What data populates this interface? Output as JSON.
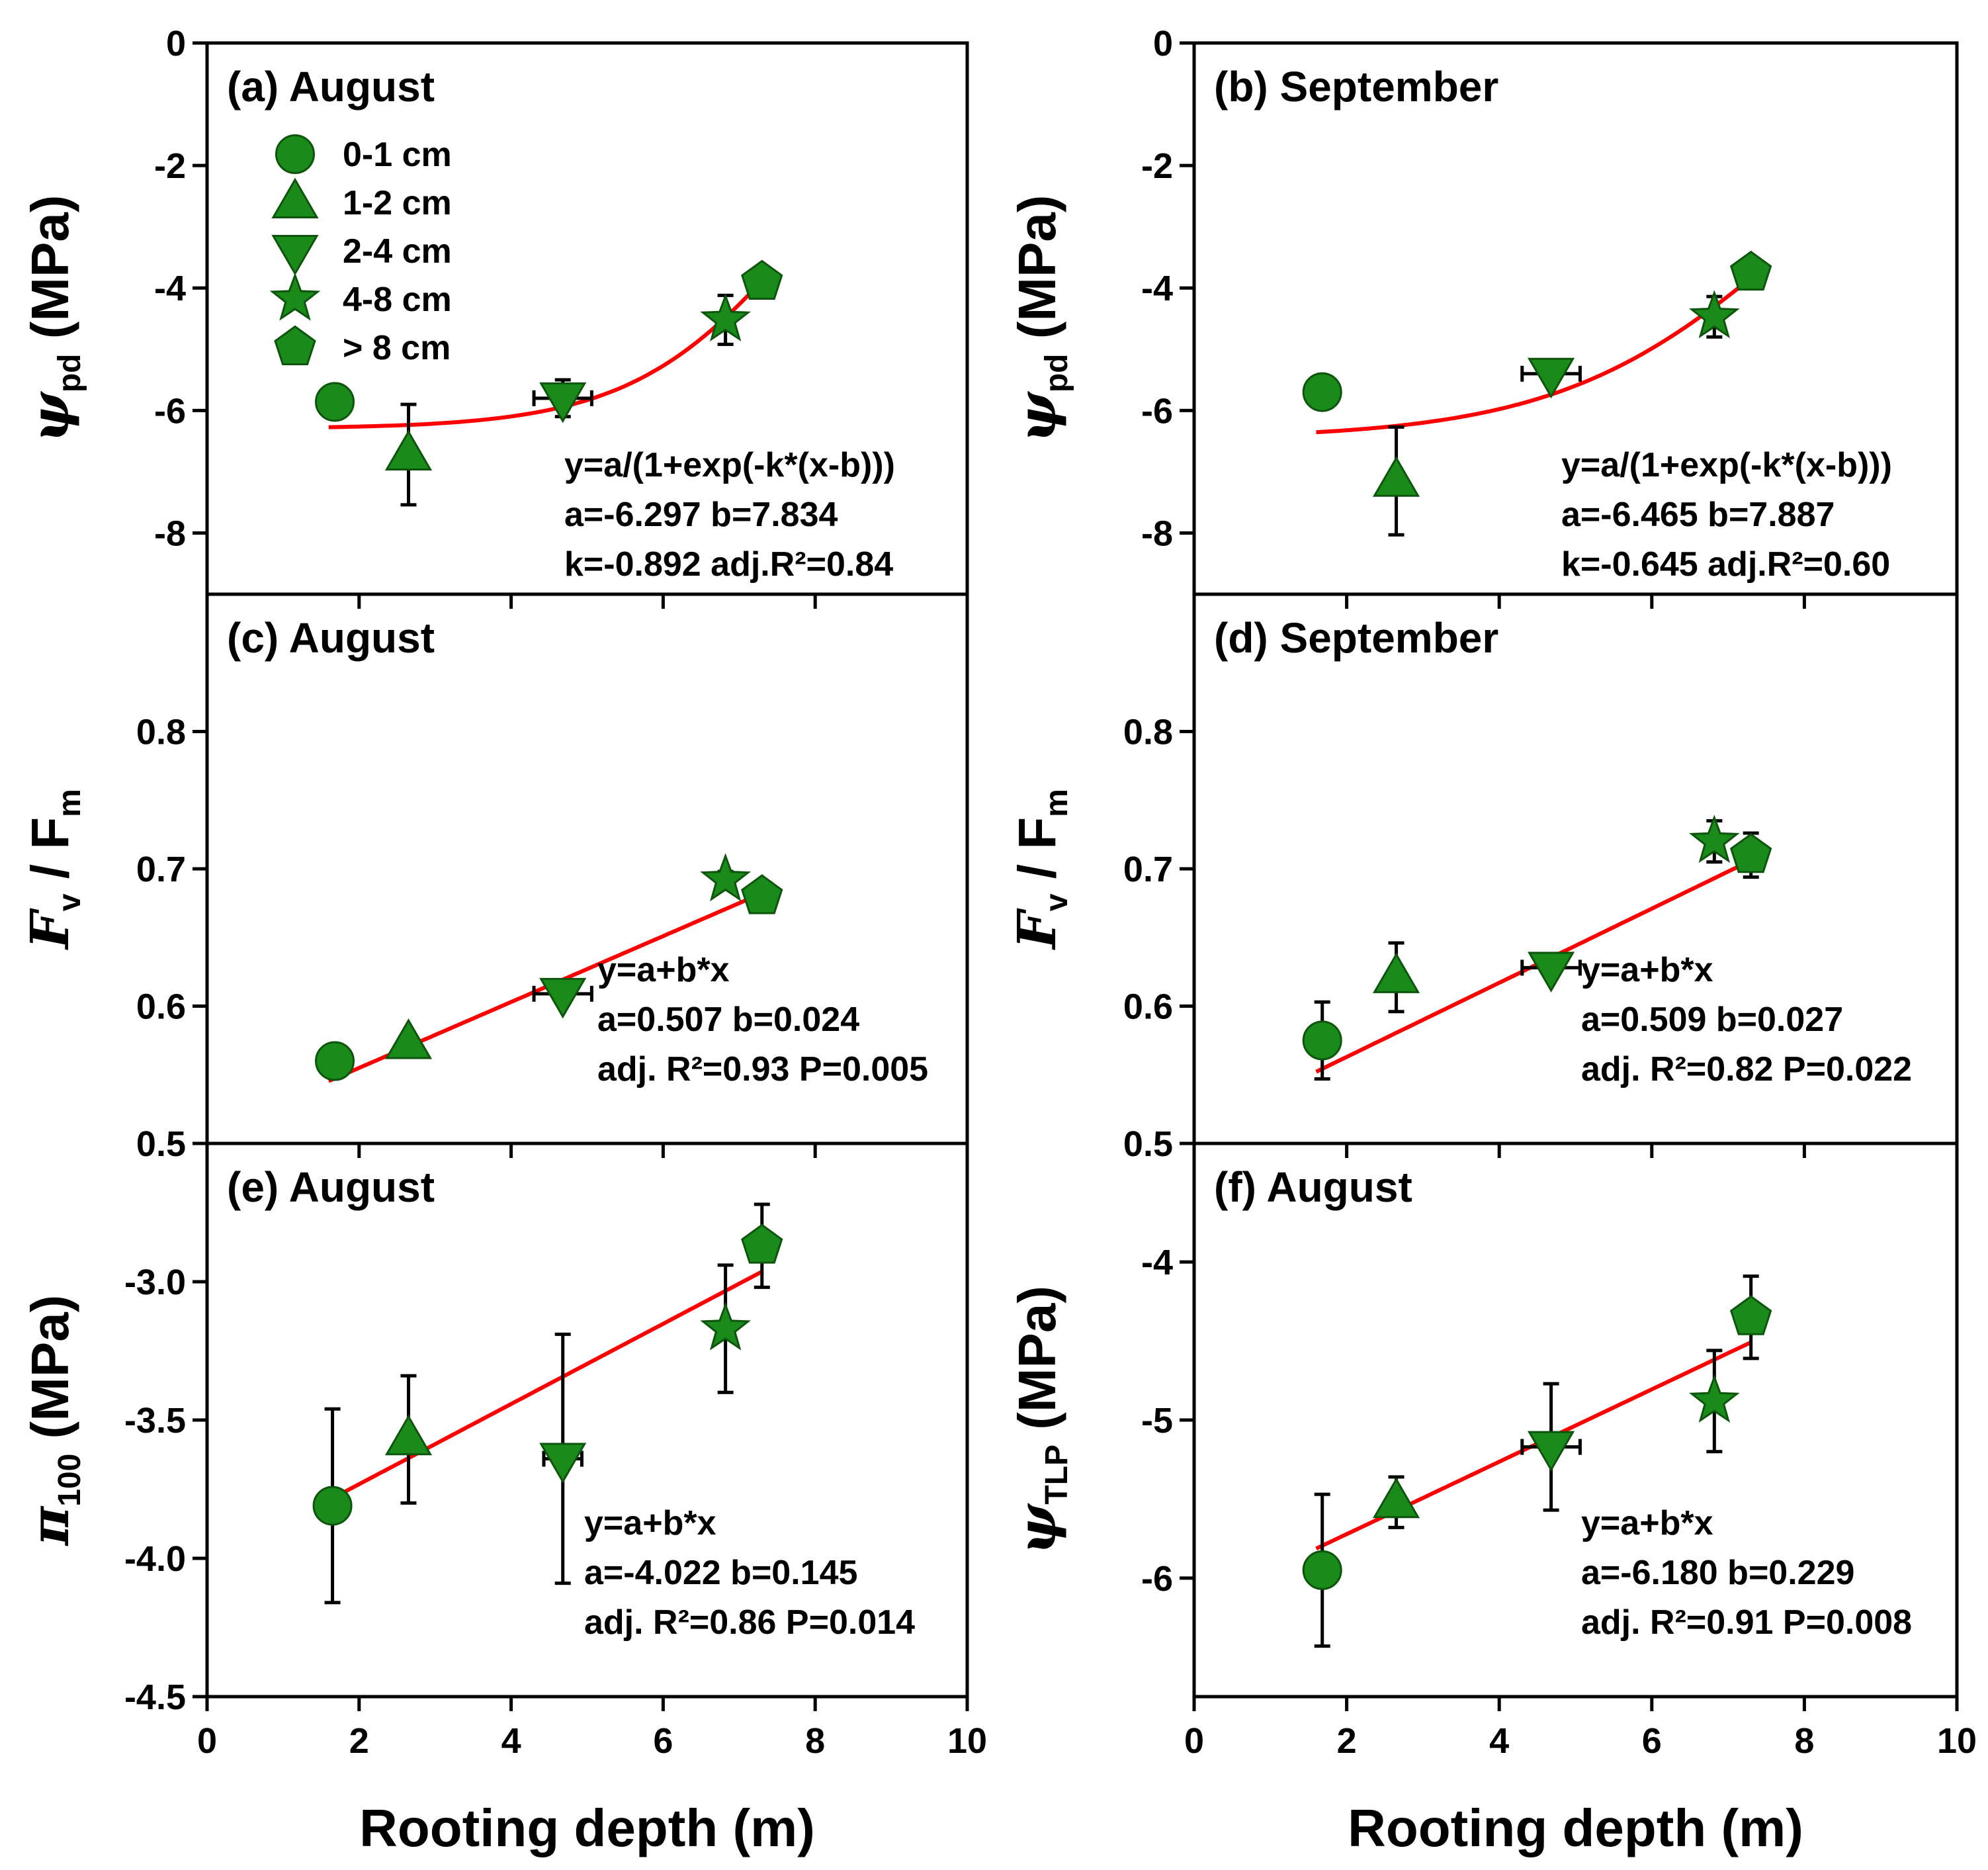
{
  "colors": {
    "marker": "#1a8a1a",
    "marker_edge": "#0d550d",
    "fit_line": "#ff0000",
    "axes": "#000000"
  },
  "legend": {
    "items": [
      {
        "label": "0-1 cm",
        "marker": "circle"
      },
      {
        "label": "1-2 cm",
        "marker": "triangle-up"
      },
      {
        "label": "2-4 cm",
        "marker": "triangle-down"
      },
      {
        "label": "4-8 cm",
        "marker": "star"
      },
      {
        "label": "> 8 cm",
        "marker": "pentagon"
      }
    ]
  },
  "x_axis": {
    "label": "Rooting depth (m)",
    "range": [
      0,
      10
    ],
    "ticks": [
      "0",
      "2",
      "4",
      "6",
      "8",
      "10"
    ]
  },
  "chart_data": [
    {
      "id": "a",
      "type": "scatter",
      "title": "(a) August",
      "ylabel": {
        "symbol": "ψ",
        "sub": "pd",
        "unit": "(MPa)"
      },
      "ylim": [
        -9,
        0
      ],
      "yticks": [
        0,
        -2,
        -4,
        -6,
        -8
      ],
      "ytick_labels": [
        "0",
        "-2",
        "-4",
        "-6",
        "-8"
      ],
      "points": [
        {
          "depth_class": "0-1 cm",
          "x": 1.68,
          "y": -5.86,
          "yerr": 0.04,
          "xerr": 0.05
        },
        {
          "depth_class": "1-2 cm",
          "x": 2.65,
          "y": -6.72,
          "yerr": 0.82,
          "xerr": 0
        },
        {
          "depth_class": "2-4 cm",
          "x": 4.68,
          "y": -5.8,
          "yerr": 0.3,
          "xerr": 0.38
        },
        {
          "depth_class": "4-8 cm",
          "x": 6.82,
          "y": -4.52,
          "yerr": 0.4,
          "xerr": 0
        },
        {
          "depth_class": "> 8 cm",
          "x": 7.3,
          "y": -3.9,
          "yerr": 0.12,
          "xerr": 0
        }
      ],
      "fit": {
        "model": "logistic",
        "x_range": [
          1.6,
          7.3
        ],
        "a": -6.297,
        "b": 7.834,
        "k": -0.892
      },
      "equation_lines": [
        "y=a/(1+exp(-k*(x-b)))",
        "a=-6.297 b=7.834",
        "k=-0.892 adj.R²=0.84"
      ]
    },
    {
      "id": "b",
      "type": "scatter",
      "title": "(b)  September",
      "ylabel": {
        "symbol": "ψ",
        "sub": "pd",
        "unit": "(MPa)"
      },
      "ylim": [
        -9,
        0
      ],
      "yticks": [
        0,
        -2,
        -4,
        -6,
        -8
      ],
      "ytick_labels": [
        "0",
        "-2",
        "-4",
        "-6",
        "-8"
      ],
      "points": [
        {
          "depth_class": "0-1 cm",
          "x": 1.68,
          "y": -5.7,
          "yerr": 0.12,
          "xerr": 0.05
        },
        {
          "depth_class": "1-2 cm",
          "x": 2.65,
          "y": -7.15,
          "yerr": 0.88,
          "xerr": 0
        },
        {
          "depth_class": "2-4 cm",
          "x": 4.68,
          "y": -5.4,
          "yerr": 0.1,
          "xerr": 0.38
        },
        {
          "depth_class": "4-8 cm",
          "x": 6.82,
          "y": -4.47,
          "yerr": 0.33,
          "xerr": 0
        },
        {
          "depth_class": "> 8 cm",
          "x": 7.3,
          "y": -3.75,
          "yerr": 0.1,
          "xerr": 0
        }
      ],
      "fit": {
        "model": "logistic",
        "x_range": [
          1.6,
          7.3
        ],
        "a": -6.465,
        "b": 7.887,
        "k": -0.645
      },
      "equation_lines": [
        "y=a/(1+exp(-k*(x-b)))",
        "a=-6.465 b=7.887",
        "k=-0.645 adj.R²=0.60"
      ]
    },
    {
      "id": "c",
      "type": "scatter",
      "title": "(c) August",
      "ylabel": {
        "symbol": "F",
        "sub": "v",
        "mid": " / F",
        "sub2": "m",
        "unit": ""
      },
      "ylim": [
        0.5,
        0.9
      ],
      "yticks": [
        0.5,
        0.6,
        0.7,
        0.8
      ],
      "ytick_labels": [
        "0.5",
        "0.6",
        "0.7",
        "0.8"
      ],
      "points": [
        {
          "depth_class": "0-1 cm",
          "x": 1.68,
          "y": 0.56,
          "yerr": 0.005,
          "xerr": 0.05
        },
        {
          "depth_class": "1-2 cm",
          "x": 2.65,
          "y": 0.573,
          "yerr": 0.005,
          "xerr": 0
        },
        {
          "depth_class": "2-4 cm",
          "x": 4.68,
          "y": 0.609,
          "yerr": 0.005,
          "xerr": 0.38
        },
        {
          "depth_class": "4-8 cm",
          "x": 6.82,
          "y": 0.692,
          "yerr": 0.006,
          "xerr": 0
        },
        {
          "depth_class": "> 8 cm",
          "x": 7.3,
          "y": 0.68,
          "yerr": 0.005,
          "xerr": 0
        }
      ],
      "fit": {
        "model": "linear",
        "x_range": [
          1.6,
          7.3
        ],
        "a": 0.507,
        "b": 0.024
      },
      "equation_lines": [
        "y=a+b*x",
        "a=0.507 b=0.024",
        "adj. R²=0.93  P=0.005"
      ]
    },
    {
      "id": "d",
      "type": "scatter",
      "title": "(d)  September",
      "ylabel": {
        "symbol": "F",
        "sub": "v",
        "mid": " / F",
        "sub2": "m",
        "unit": ""
      },
      "ylim": [
        0.5,
        0.9
      ],
      "yticks": [
        0.5,
        0.6,
        0.7,
        0.8
      ],
      "ytick_labels": [
        "0.5",
        "0.6",
        "0.7",
        "0.8"
      ],
      "points": [
        {
          "depth_class": "0-1 cm",
          "x": 1.68,
          "y": 0.575,
          "yerr": 0.028,
          "xerr": 0.05
        },
        {
          "depth_class": "1-2 cm",
          "x": 2.65,
          "y": 0.621,
          "yerr": 0.025,
          "xerr": 0
        },
        {
          "depth_class": "2-4 cm",
          "x": 4.68,
          "y": 0.628,
          "yerr": 0.006,
          "xerr": 0.38
        },
        {
          "depth_class": "4-8 cm",
          "x": 6.82,
          "y": 0.72,
          "yerr": 0.015,
          "xerr": 0
        },
        {
          "depth_class": "> 8 cm",
          "x": 7.3,
          "y": 0.71,
          "yerr": 0.016,
          "xerr": 0
        }
      ],
      "fit": {
        "model": "linear",
        "x_range": [
          1.6,
          7.3
        ],
        "a": 0.509,
        "b": 0.027
      },
      "equation_lines": [
        "y=a+b*x",
        "a=0.509 b=0.027",
        "adj. R²=0.82  P=0.022"
      ]
    },
    {
      "id": "e",
      "type": "scatter",
      "title": "(e)  August",
      "ylabel": {
        "symbol": "π",
        "sub": "100",
        "unit": "(MPa)"
      },
      "ylim": [
        -4.5,
        -2.5
      ],
      "yticks": [
        -3.0,
        -3.5,
        -4.0,
        -4.5
      ],
      "ytick_labels": [
        "-3.0",
        "-3.5",
        "-4.0",
        "-4.5"
      ],
      "points": [
        {
          "depth_class": "0-1 cm",
          "x": 1.65,
          "y": -3.81,
          "yerr": 0.35,
          "xerr": 0
        },
        {
          "depth_class": "1-2 cm",
          "x": 2.65,
          "y": -3.57,
          "yerr": 0.23,
          "xerr": 0
        },
        {
          "depth_class": "2-4 cm",
          "x": 4.68,
          "y": -3.64,
          "yerr": 0.45,
          "xerr": 0.25
        },
        {
          "depth_class": "4-8 cm",
          "x": 6.82,
          "y": -3.17,
          "yerr": 0.23,
          "xerr": 0
        },
        {
          "depth_class": "> 8 cm",
          "x": 7.3,
          "y": -2.87,
          "yerr": 0.15,
          "xerr": 0
        }
      ],
      "fit": {
        "model": "linear",
        "x_range": [
          1.6,
          7.3
        ],
        "a": -4.022,
        "b": 0.145
      },
      "equation_lines": [
        "y=a+b*x",
        "a=-4.022 b=0.145",
        "adj. R²=0.86   P=0.014"
      ]
    },
    {
      "id": "f",
      "type": "scatter",
      "title": "(f)  August",
      "ylabel": {
        "symbol": "ψ",
        "sub": "TLP",
        "unit": "(MPa)"
      },
      "ylim": [
        -6.75,
        -3.25
      ],
      "yticks": [
        -4,
        -5,
        -6
      ],
      "ytick_labels": [
        "-4",
        "-5",
        "-6"
      ],
      "points": [
        {
          "depth_class": "0-1 cm",
          "x": 1.68,
          "y": -5.95,
          "yerr": 0.48,
          "xerr": 0
        },
        {
          "depth_class": "1-2 cm",
          "x": 2.65,
          "y": -5.52,
          "yerr": 0.16,
          "xerr": 0
        },
        {
          "depth_class": "2-4 cm",
          "x": 4.68,
          "y": -5.17,
          "yerr": 0.4,
          "xerr": 0.38
        },
        {
          "depth_class": "4-8 cm",
          "x": 6.82,
          "y": -4.88,
          "yerr": 0.32,
          "xerr": 0
        },
        {
          "depth_class": "> 8 cm",
          "x": 7.3,
          "y": -4.35,
          "yerr": 0.26,
          "xerr": 0
        }
      ],
      "fit": {
        "model": "linear",
        "x_range": [
          1.6,
          7.3
        ],
        "a": -6.18,
        "b": 0.229
      },
      "equation_lines": [
        "y=a+b*x",
        "a=-6.180 b=0.229",
        "adj. R²=0.91   P=0.008"
      ]
    }
  ]
}
